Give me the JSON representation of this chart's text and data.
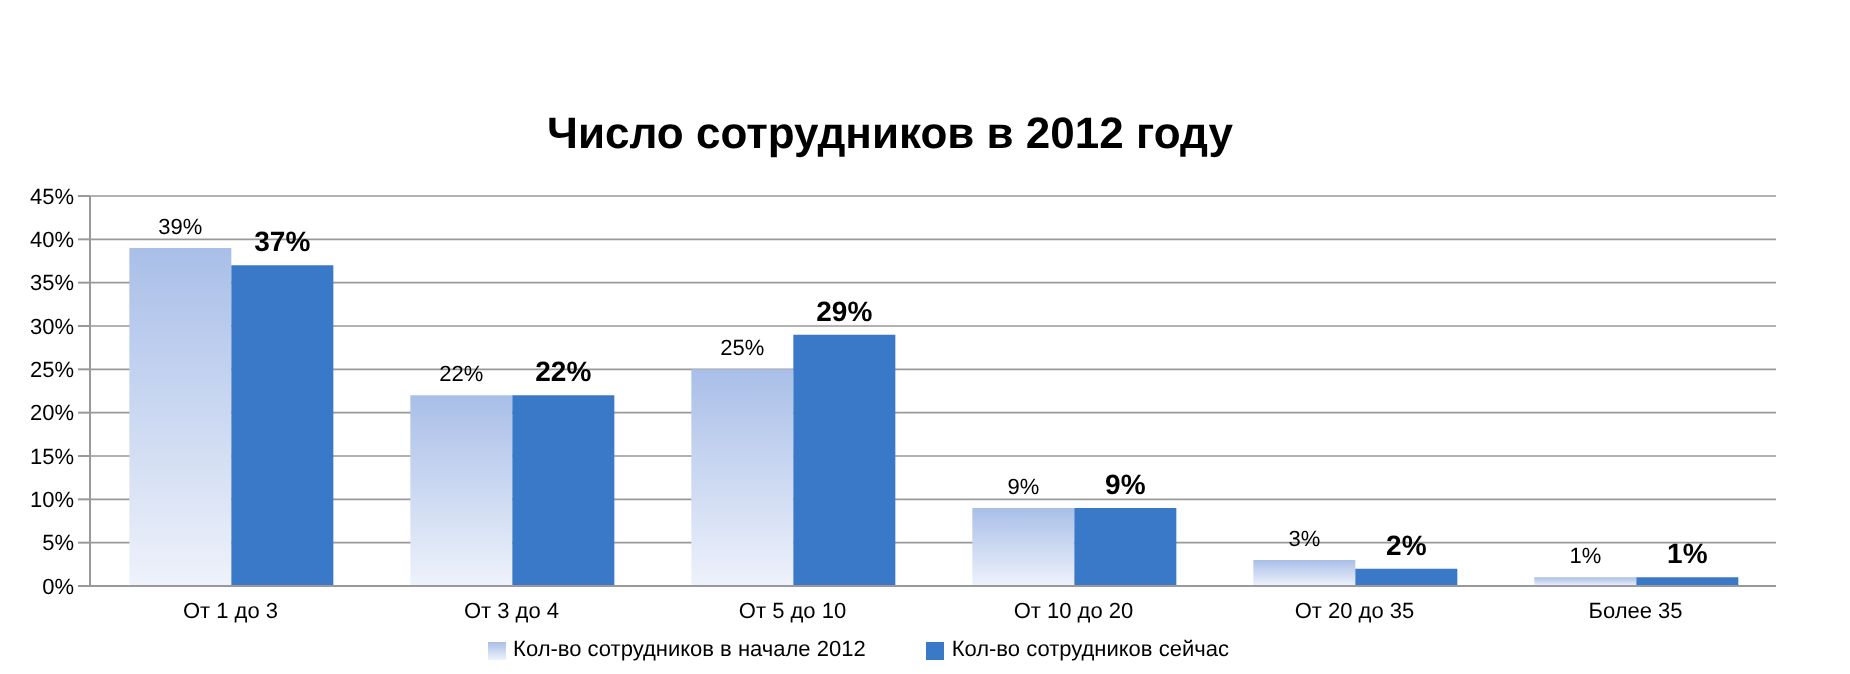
{
  "chart_data": {
    "type": "bar",
    "title": "Число сотрудников в 2012 году",
    "categories": [
      "От 1 до 3",
      "От 3 до 4",
      "От 5 до 10",
      "От 10 до 20",
      "От 20 до 35",
      "Более 35"
    ],
    "series": [
      {
        "name": "Кол-во сотрудников в начале 2012",
        "color": "#a9bfe8",
        "values": [
          39,
          22,
          25,
          9,
          3,
          1
        ],
        "value_labels": [
          "39%",
          "22%",
          "25%",
          "9%",
          "3%",
          "1%"
        ]
      },
      {
        "name": "Кол-во сотрудников сейчас",
        "color": "#3a78c8",
        "values": [
          37,
          22,
          29,
          9,
          2,
          1
        ],
        "value_labels": [
          "37%",
          "22%",
          "29%",
          "9%",
          "2%",
          "1%"
        ]
      }
    ],
    "ylim": [
      0,
      45
    ],
    "yticks": [
      {
        "value": 0,
        "label": "0%"
      },
      {
        "value": 5,
        "label": "5%"
      },
      {
        "value": 10,
        "label": "10%"
      },
      {
        "value": 15,
        "label": "15%"
      },
      {
        "value": 20,
        "label": "20%"
      },
      {
        "value": 25,
        "label": "25%"
      },
      {
        "value": 30,
        "label": "30%"
      },
      {
        "value": 35,
        "label": "35%"
      },
      {
        "value": 40,
        "label": "40%"
      },
      {
        "value": 45,
        "label": "45%"
      }
    ],
    "grid": "y",
    "legend": "bottom"
  }
}
